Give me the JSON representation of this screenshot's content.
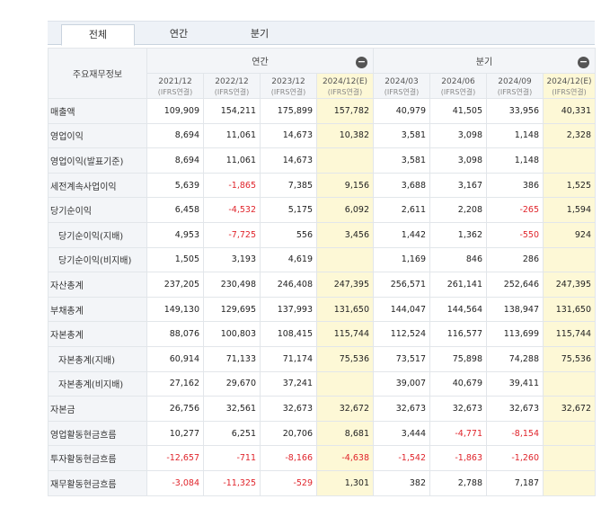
{
  "tabs": [
    "전체",
    "연간",
    "분기"
  ],
  "header": {
    "label_col": "주요재무정보",
    "annual": "연간",
    "quarter": "분기",
    "collapse_icon": "−"
  },
  "columns": [
    {
      "period": "2021/12",
      "basis": "(IFRS연결)"
    },
    {
      "period": "2022/12",
      "basis": "(IFRS연결)"
    },
    {
      "period": "2023/12",
      "basis": "(IFRS연결)"
    },
    {
      "period": "2024/12(E)",
      "basis": "(IFRS연결)"
    },
    {
      "period": "2024/03",
      "basis": "(IFRS연결)"
    },
    {
      "period": "2024/06",
      "basis": "(IFRS연결)"
    },
    {
      "period": "2024/09",
      "basis": "(IFRS연결)"
    },
    {
      "period": "2024/12(E)",
      "basis": "(IFRS연결)"
    }
  ],
  "rows": [
    {
      "label": "매출액",
      "indent": 0,
      "values": [
        "109,909",
        "154,211",
        "175,899",
        "157,782",
        "40,979",
        "41,505",
        "33,956",
        "40,331"
      ]
    },
    {
      "label": "영업이익",
      "indent": 0,
      "values": [
        "8,694",
        "11,061",
        "14,673",
        "10,382",
        "3,581",
        "3,098",
        "1,148",
        "2,328"
      ]
    },
    {
      "label": "영업이익(발표기준)",
      "indent": 0,
      "values": [
        "8,694",
        "11,061",
        "14,673",
        "",
        "3,581",
        "3,098",
        "1,148",
        ""
      ]
    },
    {
      "label": "세전계속사업이익",
      "indent": 0,
      "values": [
        "5,639",
        "-1,865",
        "7,385",
        "9,156",
        "3,688",
        "3,167",
        "386",
        "1,525"
      ]
    },
    {
      "label": "당기순이익",
      "indent": 0,
      "values": [
        "6,458",
        "-4,532",
        "5,175",
        "6,092",
        "2,611",
        "2,208",
        "-265",
        "1,594"
      ]
    },
    {
      "label": "당기순이익(지배)",
      "indent": 1,
      "values": [
        "4,953",
        "-7,725",
        "556",
        "3,456",
        "1,442",
        "1,362",
        "-550",
        "924"
      ]
    },
    {
      "label": "당기순이익(비지배)",
      "indent": 1,
      "values": [
        "1,505",
        "3,193",
        "4,619",
        "",
        "1,169",
        "846",
        "286",
        ""
      ]
    },
    {
      "label": "자산총계",
      "indent": 0,
      "values": [
        "237,205",
        "230,498",
        "246,408",
        "247,395",
        "256,571",
        "261,141",
        "252,646",
        "247,395"
      ]
    },
    {
      "label": "부채총계",
      "indent": 0,
      "values": [
        "149,130",
        "129,695",
        "137,993",
        "131,650",
        "144,047",
        "144,564",
        "138,947",
        "131,650"
      ]
    },
    {
      "label": "자본총계",
      "indent": 0,
      "values": [
        "88,076",
        "100,803",
        "108,415",
        "115,744",
        "112,524",
        "116,577",
        "113,699",
        "115,744"
      ]
    },
    {
      "label": "자본총계(지배)",
      "indent": 1,
      "values": [
        "60,914",
        "71,133",
        "71,174",
        "75,536",
        "73,517",
        "75,898",
        "74,288",
        "75,536"
      ]
    },
    {
      "label": "자본총계(비지배)",
      "indent": 1,
      "values": [
        "27,162",
        "29,670",
        "37,241",
        "",
        "39,007",
        "40,679",
        "39,411",
        ""
      ]
    },
    {
      "label": "자본금",
      "indent": 0,
      "values": [
        "26,756",
        "32,561",
        "32,673",
        "32,672",
        "32,673",
        "32,673",
        "32,673",
        "32,672"
      ]
    },
    {
      "label": "영업활동현금흐름",
      "indent": 0,
      "values": [
        "10,277",
        "6,251",
        "20,706",
        "8,681",
        "3,444",
        "-4,771",
        "-8,154",
        ""
      ]
    },
    {
      "label": "투자활동현금흐름",
      "indent": 0,
      "values": [
        "-12,657",
        "-711",
        "-8,166",
        "-4,638",
        "-1,542",
        "-1,863",
        "-1,260",
        ""
      ]
    },
    {
      "label": "재무활동현금흐름",
      "indent": 0,
      "values": [
        "-3,084",
        "-11,325",
        "-529",
        "1,301",
        "382",
        "2,788",
        "7,187",
        ""
      ]
    }
  ],
  "colors": {
    "negative": "#e0242b",
    "estimate_bg": "#fdf8d6",
    "header_bg": "#f3f5f8"
  }
}
